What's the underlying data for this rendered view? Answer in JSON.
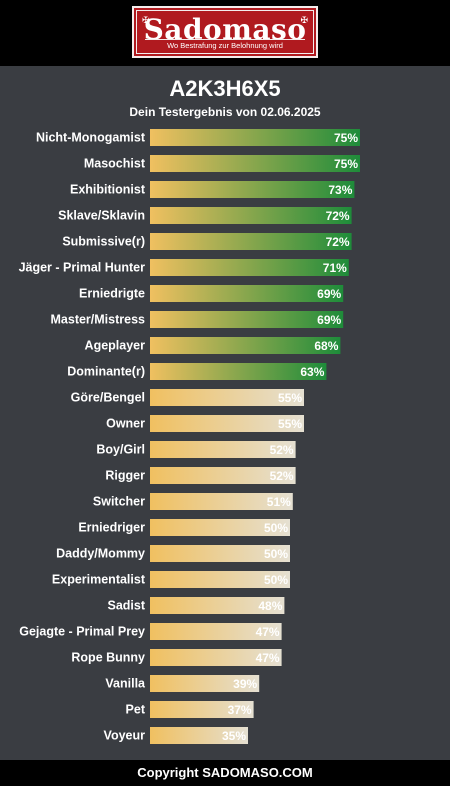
{
  "header": {
    "logo_text": "Sadomaso",
    "logo_tagline": "Wo Bestrafung zur Belohnung wird"
  },
  "result": {
    "title": "A2K3H6X5",
    "subtitle": "Dein Testergebnis von 02.06.2025"
  },
  "footer": {
    "copyright": "Copyright SADOMASO.COM"
  },
  "chart_data": {
    "type": "bar",
    "orientation": "horizontal",
    "title": "A2K3H6X5",
    "subtitle": "Dein Testergebnis von 02.06.2025",
    "categories": [
      "Nicht-Monogamist",
      "Masochist",
      "Exhibitionist",
      "Sklave/Sklavin",
      "Submissive(r)",
      "Jäger - Primal Hunter",
      "Erniedrigte",
      "Master/Mistress",
      "Ageplayer",
      "Dominante(r)",
      "Göre/Bengel",
      "Owner",
      "Boy/Girl",
      "Rigger",
      "Switcher",
      "Erniedriger",
      "Daddy/Mommy",
      "Experimentalist",
      "Sadist",
      "Gejagte - Primal Prey",
      "Rope Bunny",
      "Vanilla",
      "Pet",
      "Voyeur"
    ],
    "values": [
      75,
      75,
      73,
      72,
      72,
      71,
      69,
      69,
      68,
      63,
      55,
      55,
      52,
      52,
      51,
      50,
      50,
      50,
      48,
      47,
      47,
      39,
      37,
      35
    ],
    "value_labels": [
      "75%",
      "75%",
      "73%",
      "72%",
      "72%",
      "71%",
      "69%",
      "69%",
      "68%",
      "63%",
      "55%",
      "55%",
      "52%",
      "52%",
      "51%",
      "50%",
      "50%",
      "50%",
      "48%",
      "47%",
      "47%",
      "39%",
      "37%",
      "35%"
    ],
    "xlim": [
      0,
      100
    ],
    "unit": "%",
    "grid": false,
    "colors": {
      "low_start": "#f0c060",
      "low_end": "#e5e0d2",
      "high_start": "#f0c060",
      "high_end": "#1e8c3a",
      "threshold": 60
    }
  }
}
